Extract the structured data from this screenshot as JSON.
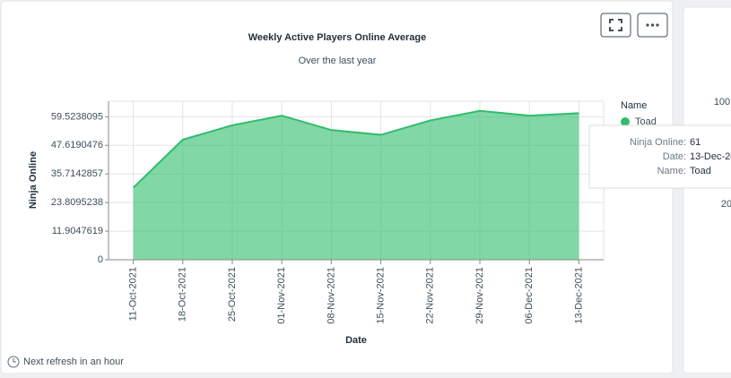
{
  "chart_data": {
    "type": "area",
    "title": "Weekly Active Players Online Average",
    "subtitle": "Over the last year",
    "x_label": "Date",
    "y_label": "Ninja Online",
    "legend_title": "Name",
    "categories": [
      "11-Oct-2021",
      "18-Oct-2021",
      "25-Oct-2021",
      "01-Nov-2021",
      "08-Nov-2021",
      "15-Nov-2021",
      "22-Nov-2021",
      "29-Nov-2021",
      "06-Dec-2021",
      "13-Dec-2021"
    ],
    "series": [
      {
        "name": "Toad",
        "color": "#2ebd6b",
        "values": [
          30,
          50,
          56,
          60,
          54,
          52,
          58,
          62,
          60,
          61
        ]
      }
    ],
    "ylim": [
      0,
      66
    ],
    "yticks": [
      0,
      11.9047619,
      23.8095238,
      35.7142857,
      47.6190476,
      59.5238095
    ],
    "grid": true,
    "legend": "right",
    "tooltip_labels": [
      "Ninja Online:",
      "Date:",
      "Name:"
    ]
  },
  "footer": "Next refresh in an hour",
  "side_card": {
    "tick_labels": [
      "100",
      "20"
    ]
  }
}
